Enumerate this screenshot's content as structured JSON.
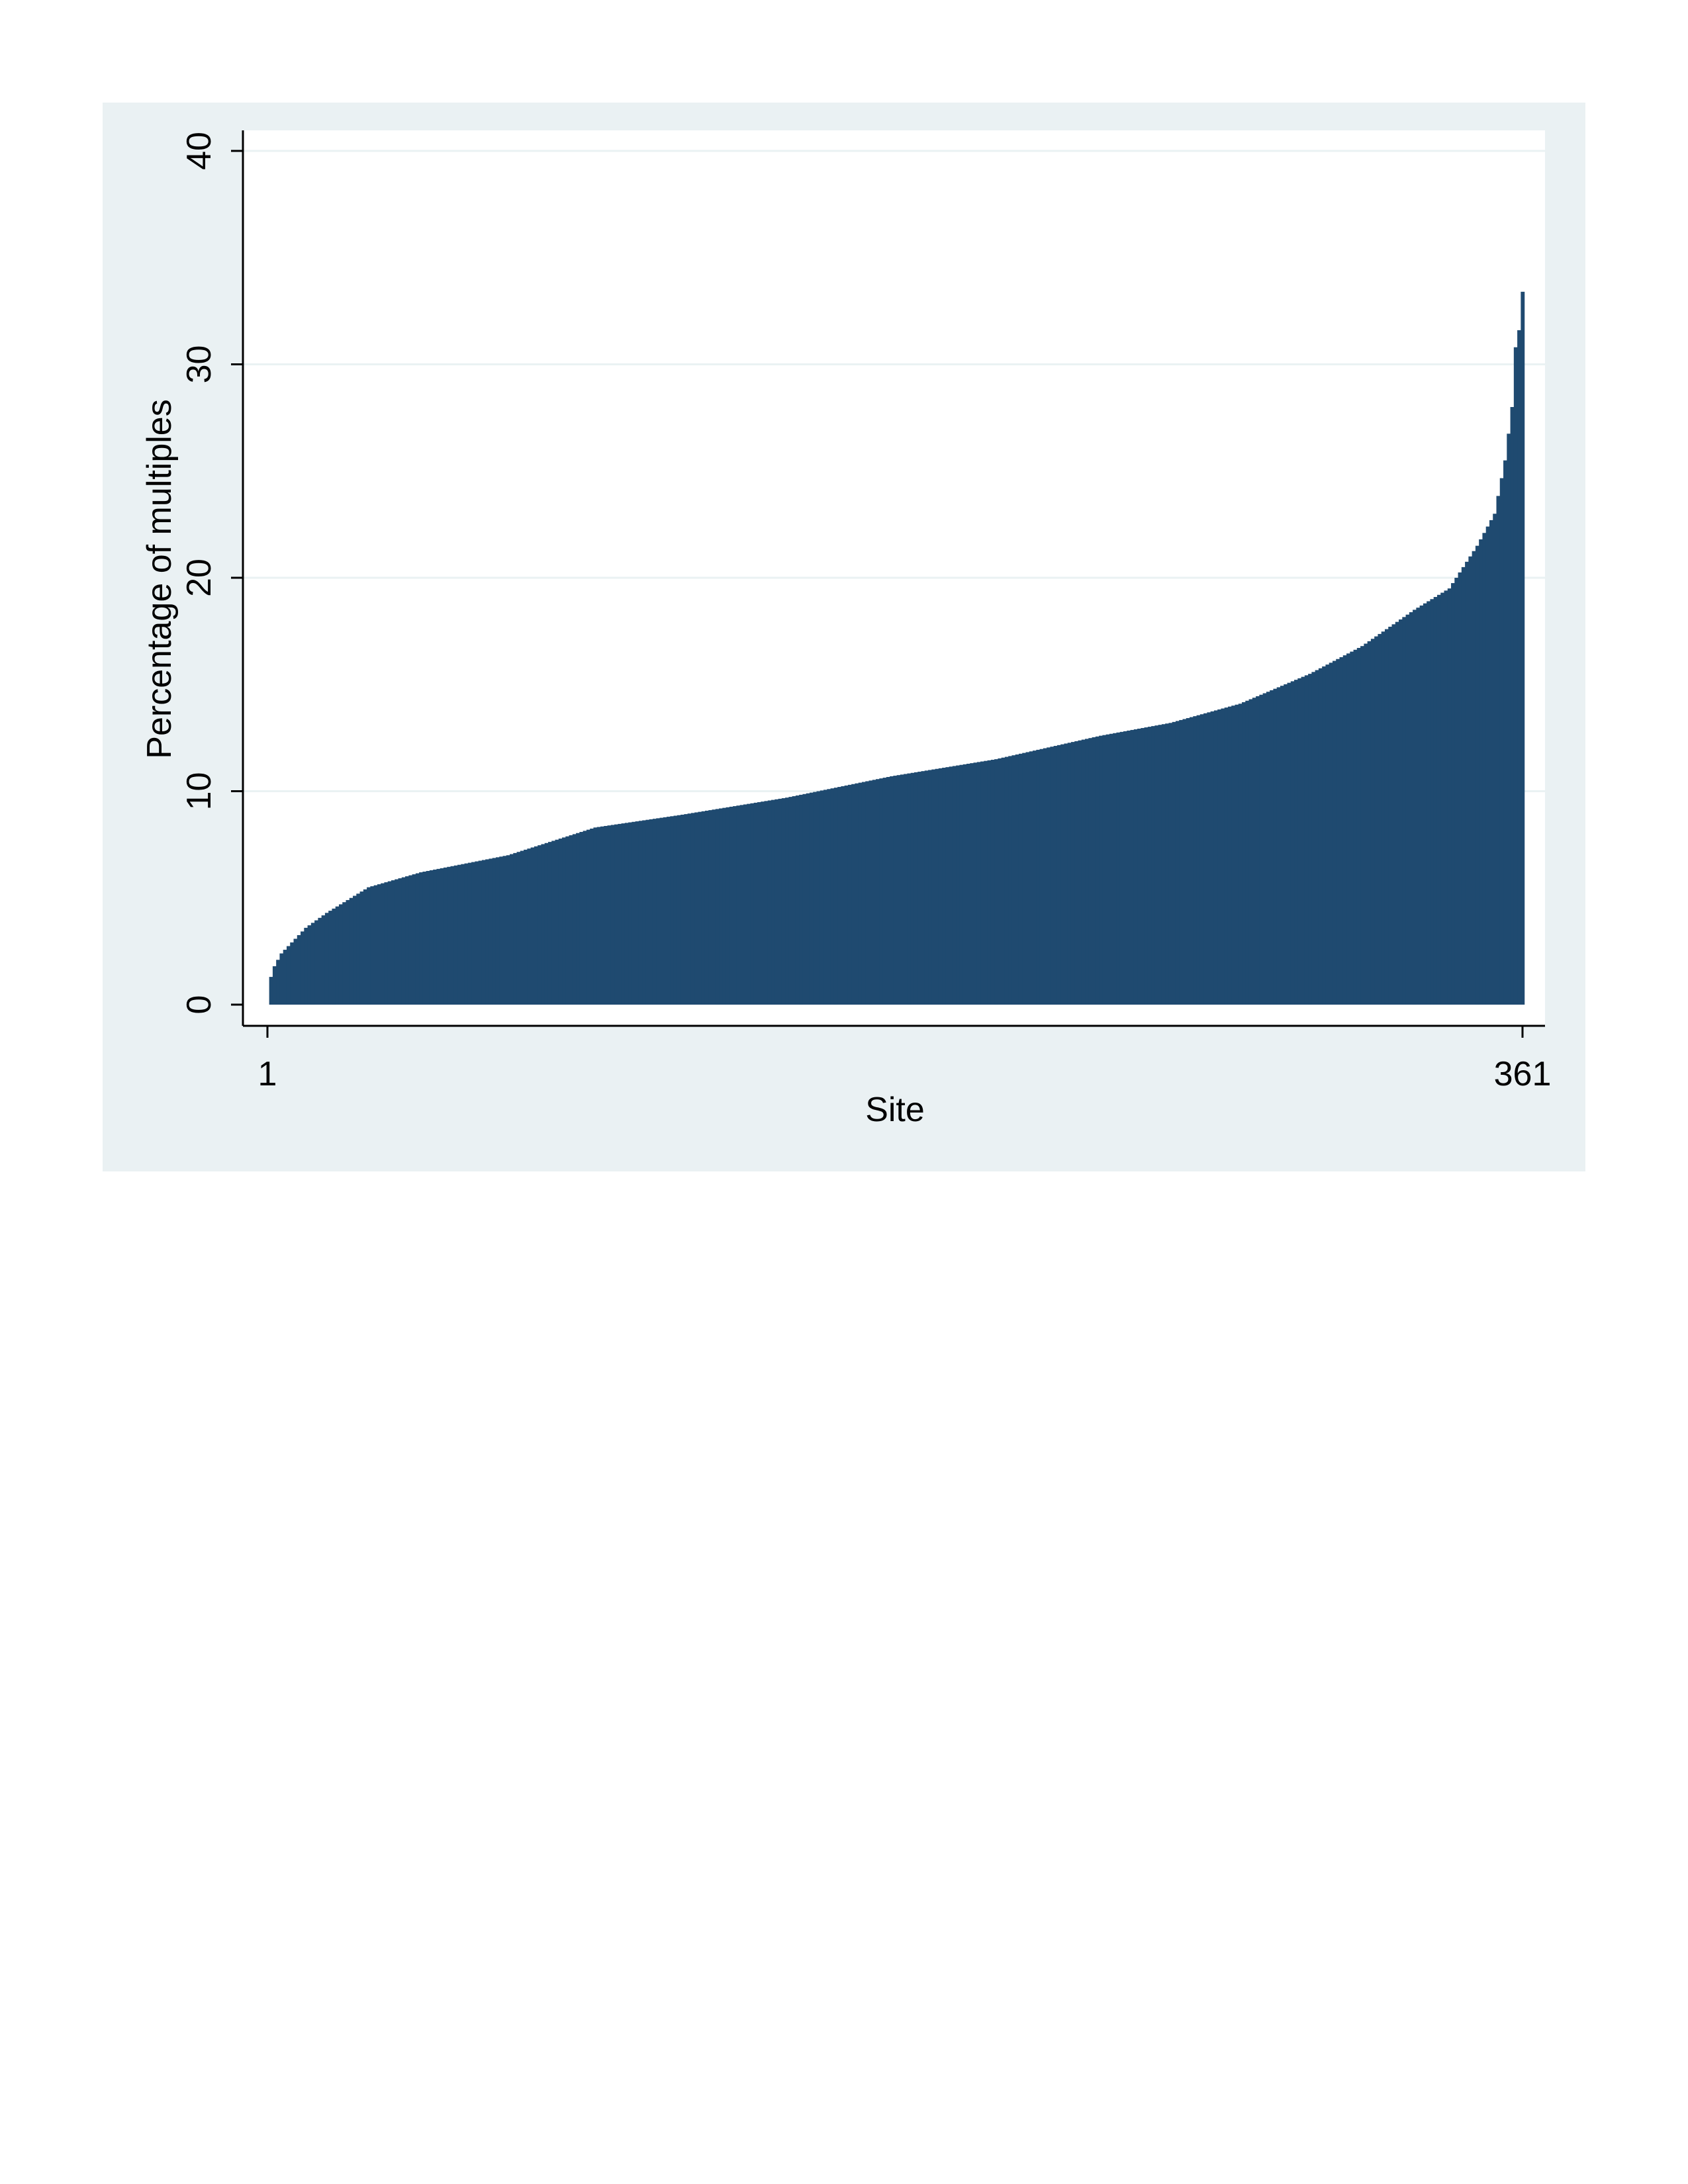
{
  "chart_data": {
    "type": "bar",
    "title": "",
    "xlabel": "Site",
    "ylabel": "Percentage of multiples",
    "x_ticks": [
      "1",
      "361"
    ],
    "y_ticks": [
      "0",
      "10",
      "20",
      "30",
      "40"
    ],
    "xlim": [
      1,
      361
    ],
    "ylim": [
      0,
      40
    ],
    "grid": true,
    "legend": "none",
    "sorted": "ascending",
    "n_bars": 361,
    "curve_knots": [
      [
        1,
        0
      ],
      [
        2,
        1.3
      ],
      [
        3,
        1.8
      ],
      [
        5,
        2.4
      ],
      [
        12,
        3.6
      ],
      [
        18,
        4.3
      ],
      [
        30,
        5.5
      ],
      [
        45,
        6.2
      ],
      [
        70,
        7.0
      ],
      [
        95,
        8.3
      ],
      [
        120,
        8.9
      ],
      [
        150,
        9.7
      ],
      [
        180,
        10.7
      ],
      [
        210,
        11.5
      ],
      [
        240,
        12.6
      ],
      [
        260,
        13.2
      ],
      [
        280,
        14.1
      ],
      [
        300,
        15.5
      ],
      [
        315,
        16.8
      ],
      [
        330,
        18.5
      ],
      [
        340,
        19.5
      ],
      [
        348,
        21.5
      ],
      [
        353,
        23.0
      ],
      [
        356,
        25.5
      ],
      [
        358,
        28.0
      ],
      [
        359,
        30.8
      ],
      [
        360,
        31.6
      ],
      [
        361,
        33.4
      ]
    ],
    "colors": {
      "bar": "#1f4a70",
      "figure_background": "#eaf1f3",
      "plot_background": "#ffffff",
      "grid": "#eaf2f3",
      "axis": "#000000"
    }
  }
}
